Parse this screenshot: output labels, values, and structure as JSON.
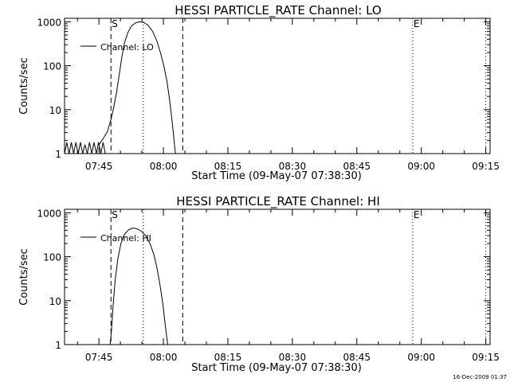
{
  "chart_data": [
    {
      "type": "line",
      "title": "HESSI PARTICLE_RATE Channel: LO",
      "xlabel": "Start Time (09-May-07 07:38:30)",
      "ylabel": "Counts/sec",
      "yscale": "log",
      "ylim": [
        1,
        1200
      ],
      "xlim_minutes": [
        -1.5,
        97.5
      ],
      "x_ticks": [
        {
          "t": 6.5,
          "label": "07:45"
        },
        {
          "t": 21.5,
          "label": "08:00"
        },
        {
          "t": 36.5,
          "label": "08:15"
        },
        {
          "t": 51.5,
          "label": "08:30"
        },
        {
          "t": 66.5,
          "label": "08:45"
        },
        {
          "t": 81.5,
          "label": "09:00"
        },
        {
          "t": 96.5,
          "label": "09:15"
        }
      ],
      "y_ticks": [
        {
          "v": 1,
          "label": "1"
        },
        {
          "v": 10,
          "label": "10"
        },
        {
          "v": 100,
          "label": "100"
        },
        {
          "v": 1000,
          "label": "1000"
        }
      ],
      "markers": [
        {
          "t": 9.3,
          "style": "dashed",
          "label": "S"
        },
        {
          "t": 16.8,
          "style": "dotted",
          "label": ""
        },
        {
          "t": 26.0,
          "style": "dashed",
          "label": ""
        },
        {
          "t": 79.5,
          "style": "dotted",
          "label": "E"
        },
        {
          "t": 96.5,
          "style": "dotted",
          "label": ""
        }
      ],
      "legend": "Channel: LO",
      "series": [
        {
          "name": "Channel: LO",
          "noise": {
            "from": -1.5,
            "to": 8.0,
            "values": [
              1,
              1.8,
              1,
              1.8,
              1,
              1.8,
              1,
              1.8,
              1,
              1.6,
              1,
              1.8,
              1,
              1.8,
              1,
              1.8,
              1,
              1.8,
              1
            ]
          },
          "points": [
            [
              6.5,
              1.6
            ],
            [
              7.5,
              2.2
            ],
            [
              8.5,
              3.2
            ],
            [
              9.3,
              6
            ],
            [
              10.0,
              12
            ],
            [
              10.6,
              25
            ],
            [
              11.2,
              60
            ],
            [
              11.8,
              150
            ],
            [
              12.4,
              320
            ],
            [
              13.2,
              560
            ],
            [
              14.0,
              780
            ],
            [
              15.0,
              950
            ],
            [
              16.0,
              1000
            ],
            [
              17.0,
              960
            ],
            [
              18.0,
              820
            ],
            [
              19.0,
              600
            ],
            [
              20.0,
              360
            ],
            [
              20.8,
              200
            ],
            [
              21.6,
              100
            ],
            [
              22.3,
              45
            ],
            [
              22.9,
              18
            ],
            [
              23.4,
              7
            ],
            [
              23.8,
              3
            ],
            [
              24.1,
              1.5
            ],
            [
              24.3,
              1
            ]
          ]
        }
      ]
    },
    {
      "type": "line",
      "title": "HESSI PARTICLE_RATE Channel: HI",
      "xlabel": "Start Time (09-May-07 07:38:30)",
      "ylabel": "Counts/sec",
      "yscale": "log",
      "ylim": [
        1,
        1200
      ],
      "xlim_minutes": [
        -1.5,
        97.5
      ],
      "x_ticks": [
        {
          "t": 6.5,
          "label": "07:45"
        },
        {
          "t": 21.5,
          "label": "08:00"
        },
        {
          "t": 36.5,
          "label": "08:15"
        },
        {
          "t": 51.5,
          "label": "08:30"
        },
        {
          "t": 66.5,
          "label": "08:45"
        },
        {
          "t": 81.5,
          "label": "09:00"
        },
        {
          "t": 96.5,
          "label": "09:15"
        }
      ],
      "y_ticks": [
        {
          "v": 1,
          "label": "1"
        },
        {
          "v": 10,
          "label": "10"
        },
        {
          "v": 100,
          "label": "100"
        },
        {
          "v": 1000,
          "label": "1000"
        }
      ],
      "markers": [
        {
          "t": 9.3,
          "style": "dashed",
          "label": "S"
        },
        {
          "t": 16.8,
          "style": "dotted",
          "label": ""
        },
        {
          "t": 26.0,
          "style": "dashed",
          "label": ""
        },
        {
          "t": 79.5,
          "style": "dotted",
          "label": "E"
        },
        {
          "t": 96.5,
          "style": "dotted",
          "label": ""
        }
      ],
      "legend": "Channel: HI",
      "series": [
        {
          "name": "Channel: HI",
          "noise": null,
          "points": [
            [
              9.1,
              1
            ],
            [
              9.4,
              2
            ],
            [
              9.8,
              8
            ],
            [
              10.3,
              30
            ],
            [
              10.9,
              90
            ],
            [
              11.6,
              200
            ],
            [
              12.4,
              320
            ],
            [
              13.4,
              410
            ],
            [
              14.4,
              450
            ],
            [
              15.4,
              430
            ],
            [
              16.4,
              380
            ],
            [
              17.4,
              300
            ],
            [
              18.4,
              200
            ],
            [
              19.3,
              110
            ],
            [
              20.1,
              50
            ],
            [
              20.8,
              20
            ],
            [
              21.4,
              8
            ],
            [
              21.9,
              3
            ],
            [
              22.3,
              1.4
            ],
            [
              22.5,
              1
            ]
          ]
        }
      ]
    }
  ],
  "footer": {
    "timestamp": "16-Dec-2009 01:37"
  }
}
